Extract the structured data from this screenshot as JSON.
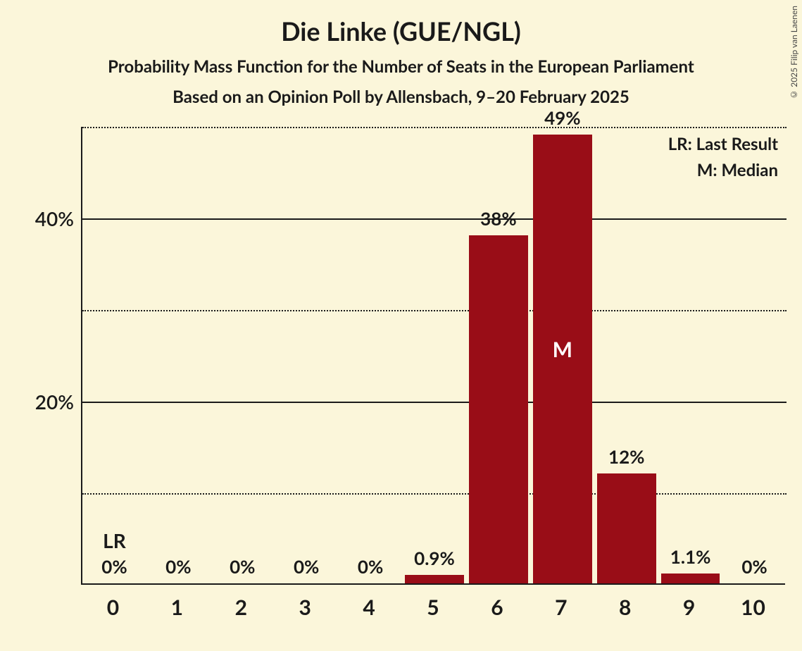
{
  "title": "Die Linke (GUE/NGL)",
  "subtitle": "Probability Mass Function for the Number of Seats in the European Parliament",
  "subtitle2": "Based on an Opinion Poll by Allensbach, 9–20 February 2025",
  "copyright": "© 2025 Filip van Laenen",
  "legend": {
    "lr": "LR: Last Result",
    "m": "M: Median"
  },
  "chart": {
    "type": "bar",
    "background_color": "#fbf6da",
    "bar_color": "#990d17",
    "text_color": "#1a1a1a",
    "median_text_color": "#ffffff",
    "axis_color": "#1a1a1a",
    "grid_solid_color": "#1a1a1a",
    "grid_dotted_color": "#1a1a1a",
    "ylim_max": 50,
    "y_major_ticks": [
      20,
      40
    ],
    "y_minor_ticks": [
      10,
      30,
      50
    ],
    "categories": [
      "0",
      "1",
      "2",
      "3",
      "4",
      "5",
      "6",
      "7",
      "8",
      "9",
      "10"
    ],
    "values": [
      0,
      0,
      0,
      0,
      0,
      0.9,
      38,
      49,
      12,
      1.1,
      0
    ],
    "value_labels": [
      "0%",
      "0%",
      "0%",
      "0%",
      "0%",
      "0.9%",
      "38%",
      "49%",
      "12%",
      "1.1%",
      "0%"
    ],
    "lr_index": 0,
    "lr_text": "LR",
    "median_index": 7,
    "median_text": "M",
    "bar_width_ratio": 0.92,
    "title_fontsize": 36,
    "subtitle_fontsize": 24,
    "axis_label_fontsize": 28,
    "bar_label_fontsize": 26,
    "xtick_fontsize": 30,
    "legend_fontsize": 24
  }
}
